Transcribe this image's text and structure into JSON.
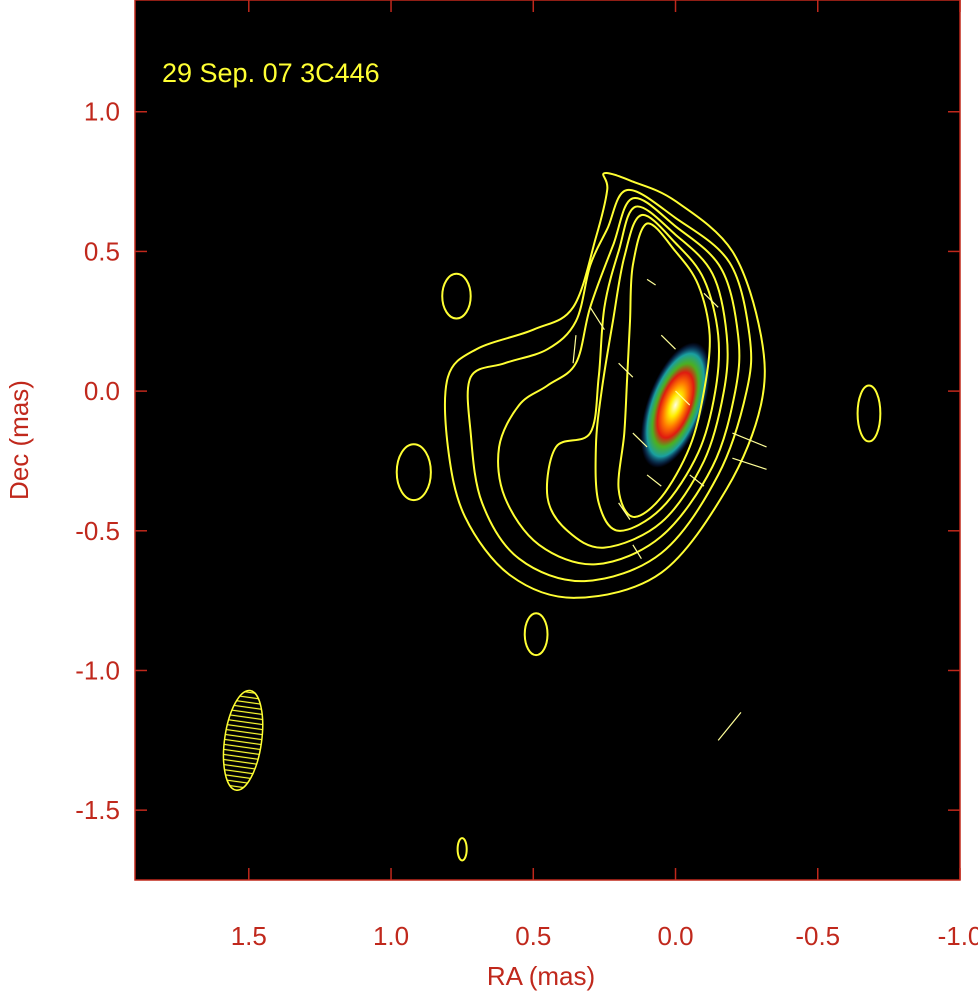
{
  "chart_data": {
    "type": "contour",
    "title": "",
    "annotation": "29 Sep. 07  3C446",
    "xlabel": "RA (mas)",
    "ylabel": "Dec (mas)",
    "xlim": [
      1.9,
      -1.0
    ],
    "ylim": [
      -1.75,
      1.4
    ],
    "xticks": [
      1.5,
      1.0,
      0.5,
      0.0,
      -0.5,
      -1.0
    ],
    "xtick_labels": [
      "1.5",
      "1.0",
      "0.5",
      "0.0",
      "-0.5",
      "-1.0"
    ],
    "yticks": [
      1.0,
      0.5,
      0.0,
      -0.5,
      -1.0,
      -1.5
    ],
    "ytick_labels": [
      "1.0",
      "0.5",
      "0.0",
      "-0.5",
      "-1.0",
      "-1.5"
    ],
    "colors": {
      "axis": "#c0281c",
      "contour": "#ffff33",
      "background": "#000000",
      "annotation": "#ffff33"
    },
    "core": {
      "ra": 0.0,
      "dec": -0.05,
      "major_axis": 0.45,
      "minor_axis": 0.18,
      "position_angle_deg": 20
    },
    "beam": {
      "ra": 1.52,
      "dec": -1.25,
      "major_axis": 0.36,
      "minor_axis": 0.13,
      "position_angle_deg": 8
    },
    "contours": [
      [
        [
          0.1,
          0.6
        ],
        [
          0.0,
          0.5
        ],
        [
          -0.08,
          0.38
        ],
        [
          -0.12,
          0.2
        ],
        [
          -0.1,
          0.0
        ],
        [
          -0.05,
          -0.2
        ],
        [
          0.05,
          -0.38
        ],
        [
          0.15,
          -0.45
        ],
        [
          0.2,
          -0.35
        ],
        [
          0.18,
          -0.15
        ],
        [
          0.17,
          0.05
        ],
        [
          0.16,
          0.25
        ],
        [
          0.15,
          0.45
        ]
      ],
      [
        [
          0.12,
          0.63
        ],
        [
          0.0,
          0.53
        ],
        [
          -0.1,
          0.4
        ],
        [
          -0.15,
          0.2
        ],
        [
          -0.14,
          0.0
        ],
        [
          -0.08,
          -0.22
        ],
        [
          0.05,
          -0.42
        ],
        [
          0.2,
          -0.5
        ],
        [
          0.27,
          -0.4
        ],
        [
          0.28,
          -0.2
        ],
        [
          0.26,
          0.0
        ],
        [
          0.22,
          0.25
        ],
        [
          0.18,
          0.48
        ]
      ],
      [
        [
          0.14,
          0.66
        ],
        [
          0.0,
          0.56
        ],
        [
          -0.13,
          0.42
        ],
        [
          -0.18,
          0.2
        ],
        [
          -0.17,
          0.0
        ],
        [
          -0.1,
          -0.25
        ],
        [
          0.05,
          -0.47
        ],
        [
          0.25,
          -0.56
        ],
        [
          0.38,
          -0.5
        ],
        [
          0.45,
          -0.38
        ],
        [
          0.42,
          -0.2
        ],
        [
          0.3,
          -0.15
        ],
        [
          0.27,
          0.05
        ],
        [
          0.25,
          0.3
        ],
        [
          0.2,
          0.5
        ]
      ],
      [
        [
          0.15,
          0.69
        ],
        [
          0.0,
          0.59
        ],
        [
          -0.16,
          0.44
        ],
        [
          -0.22,
          0.2
        ],
        [
          -0.21,
          0.0
        ],
        [
          -0.13,
          -0.27
        ],
        [
          0.05,
          -0.52
        ],
        [
          0.28,
          -0.62
        ],
        [
          0.48,
          -0.55
        ],
        [
          0.6,
          -0.38
        ],
        [
          0.62,
          -0.2
        ],
        [
          0.55,
          -0.05
        ],
        [
          0.45,
          0.02
        ],
        [
          0.35,
          0.1
        ],
        [
          0.3,
          0.3
        ],
        [
          0.22,
          0.52
        ]
      ],
      [
        [
          0.17,
          0.72
        ],
        [
          0.0,
          0.62
        ],
        [
          -0.19,
          0.46
        ],
        [
          -0.26,
          0.2
        ],
        [
          -0.25,
          0.0
        ],
        [
          -0.15,
          -0.3
        ],
        [
          0.05,
          -0.58
        ],
        [
          0.32,
          -0.68
        ],
        [
          0.55,
          -0.6
        ],
        [
          0.68,
          -0.4
        ],
        [
          0.72,
          -0.15
        ],
        [
          0.72,
          0.05
        ],
        [
          0.6,
          0.1
        ],
        [
          0.45,
          0.15
        ],
        [
          0.35,
          0.25
        ],
        [
          0.3,
          0.45
        ],
        [
          0.24,
          0.58
        ]
      ],
      [
        [
          0.25,
          0.78
        ],
        [
          0.15,
          0.75
        ],
        [
          0.0,
          0.68
        ],
        [
          -0.2,
          0.5
        ],
        [
          -0.3,
          0.2
        ],
        [
          -0.3,
          -0.05
        ],
        [
          -0.18,
          -0.35
        ],
        [
          0.05,
          -0.65
        ],
        [
          0.35,
          -0.74
        ],
        [
          0.58,
          -0.66
        ],
        [
          0.74,
          -0.45
        ],
        [
          0.8,
          -0.2
        ],
        [
          0.8,
          0.05
        ],
        [
          0.7,
          0.15
        ],
        [
          0.5,
          0.22
        ],
        [
          0.36,
          0.3
        ],
        [
          0.28,
          0.55
        ],
        [
          0.24,
          0.72
        ]
      ]
    ],
    "isolated_contours": [
      {
        "ra": 0.77,
        "dec": 0.34,
        "rx": 0.05,
        "ry": 0.08
      },
      {
        "ra": 0.92,
        "dec": -0.29,
        "rx": 0.06,
        "ry": 0.1
      },
      {
        "ra": 0.49,
        "dec": -0.87,
        "rx": 0.04,
        "ry": 0.075
      },
      {
        "ra": -0.68,
        "dec": -0.08,
        "rx": 0.04,
        "ry": 0.1
      },
      {
        "ra": 0.75,
        "dec": -1.64,
        "rx": 0.016,
        "ry": 0.04
      }
    ],
    "vectors": [
      [
        0.3,
        0.3,
        0.25,
        0.22
      ],
      [
        0.2,
        0.1,
        0.15,
        0.05
      ],
      [
        0.15,
        -0.15,
        0.1,
        -0.2
      ],
      [
        0.1,
        -0.3,
        0.05,
        -0.34
      ],
      [
        0.05,
        0.2,
        0.0,
        0.15
      ],
      [
        0.0,
        0.0,
        -0.05,
        -0.05
      ],
      [
        -0.1,
        0.35,
        -0.15,
        0.3
      ],
      [
        -0.05,
        -0.3,
        -0.1,
        -0.34
      ],
      [
        -0.2,
        -0.15,
        -0.32,
        -0.2
      ],
      [
        -0.2,
        -0.24,
        -0.32,
        -0.28
      ],
      [
        0.15,
        -0.55,
        0.12,
        -0.6
      ],
      [
        0.35,
        0.2,
        0.36,
        0.1
      ],
      [
        -0.23,
        -1.15,
        -0.15,
        -1.25
      ],
      [
        0.1,
        0.4,
        0.07,
        0.38
      ],
      [
        0.2,
        -0.4,
        0.16,
        -0.46
      ]
    ]
  }
}
